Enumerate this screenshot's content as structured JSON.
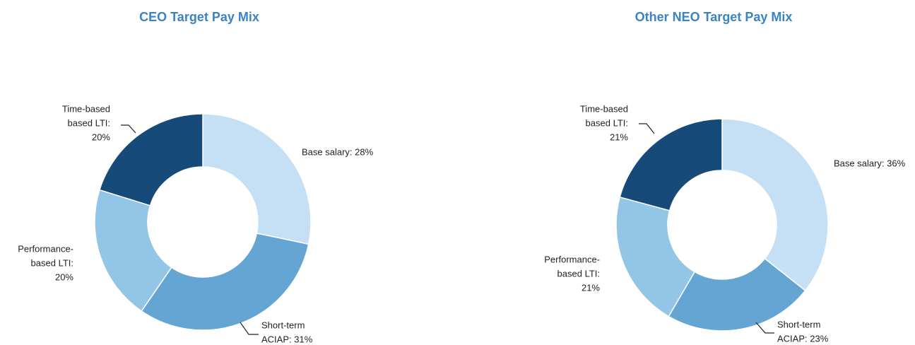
{
  "chart_data": [
    {
      "type": "donut",
      "title": "CEO Target Pay Mix",
      "categories": [
        "Base salary",
        "Short-term ACIAP",
        "Performance-based LTI",
        "Time-based based LTI"
      ],
      "values": [
        28,
        31,
        20,
        20
      ],
      "labels": [
        [
          "Base salary: 28%"
        ],
        [
          "Short-term",
          "ACIAP: 31%"
        ],
        [
          "Performance-",
          "based LTI:",
          "20%"
        ],
        [
          "Time-based",
          "based LTI:",
          "20%"
        ]
      ],
      "colors": [
        "#c5e0f4",
        "#64a5d4",
        "#93c5e6",
        "#164a78"
      ]
    },
    {
      "type": "donut",
      "title": "Other NEO Target Pay Mix",
      "categories": [
        "Base salary",
        "Short-term ACIAP",
        "Performance-based LTI",
        "Time-based based LTI"
      ],
      "values": [
        36,
        23,
        21,
        21
      ],
      "labels": [
        [
          "Base salary: 36%"
        ],
        [
          "Short-term",
          "ACIAP: 23%"
        ],
        [
          "Performance-",
          "based LTI:",
          "21%"
        ],
        [
          "Time-based",
          "based LTI:",
          "21%"
        ]
      ],
      "colors": [
        "#c5e0f4",
        "#64a5d4",
        "#93c5e6",
        "#164a78"
      ]
    }
  ]
}
